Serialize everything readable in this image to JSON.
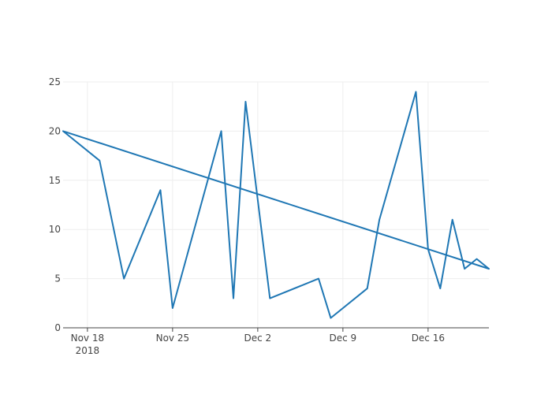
{
  "chart_data": {
    "type": "line",
    "title": "",
    "xlabel": "",
    "ylabel": "",
    "ylim": [
      0,
      25
    ],
    "y_ticks": [
      "0",
      "5",
      "10",
      "15",
      "20",
      "25"
    ],
    "x_tick_labels": [
      {
        "date": "2018-11-18",
        "line1": "Nov 18",
        "line2": "2018"
      },
      {
        "date": "2018-11-25",
        "line1": "Nov 25",
        "line2": ""
      },
      {
        "date": "2018-12-02",
        "line1": "Dec 2",
        "line2": ""
      },
      {
        "date": "2018-12-09",
        "line1": "Dec 9",
        "line2": ""
      },
      {
        "date": "2018-12-16",
        "line1": "Dec 16",
        "line2": ""
      }
    ],
    "xlim": [
      "2018-11-16",
      "2018-12-21"
    ],
    "grid": true,
    "legend": "none",
    "series": [
      {
        "color": "#1f77b4",
        "x": [
          "2018-11-16",
          "2018-11-19",
          "2018-11-21",
          "2018-11-24",
          "2018-11-25",
          "2018-11-29",
          "2018-11-30",
          "2018-12-01",
          "2018-12-03",
          "2018-12-07",
          "2018-12-08",
          "2018-12-11",
          "2018-12-12",
          "2018-12-15",
          "2018-12-16",
          "2018-12-17",
          "2018-12-18",
          "2018-12-19",
          "2018-12-20",
          "2018-12-21",
          "2018-11-16"
        ],
        "y": [
          20,
          17,
          5,
          14,
          2,
          20,
          3,
          23,
          3,
          5,
          1,
          4,
          11,
          24,
          8,
          4,
          11,
          6,
          7,
          6,
          20
        ]
      }
    ]
  }
}
